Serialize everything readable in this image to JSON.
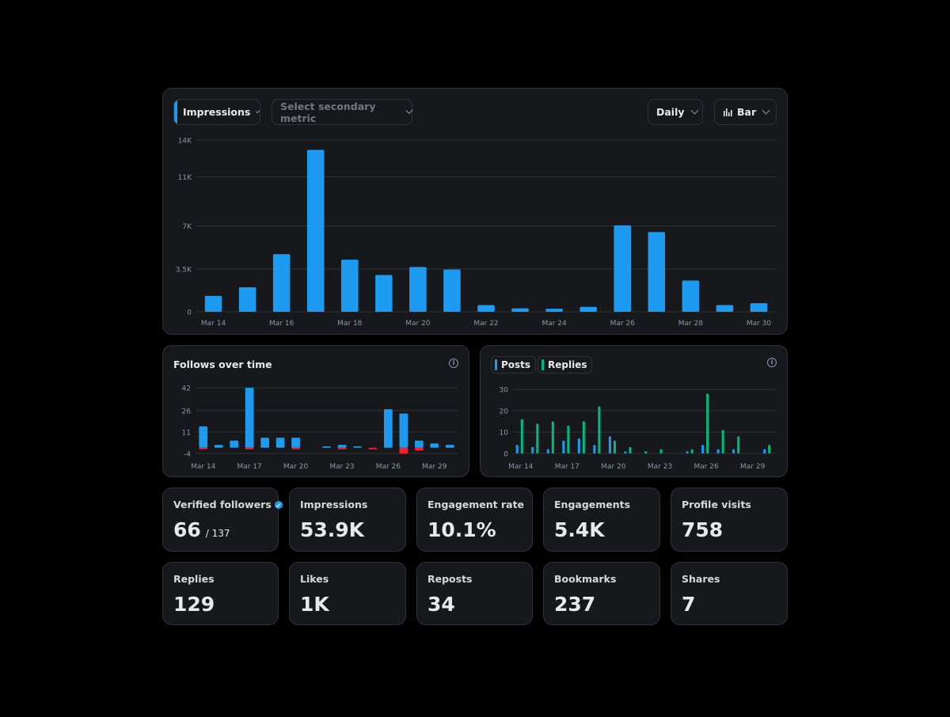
{
  "toolbar": {
    "primary_metric": "Impressions",
    "secondary_metric_placeholder": "Select secondary metric",
    "interval": "Daily",
    "chart_type": "Bar",
    "accent_color": "#1d9bf0"
  },
  "follows_card": {
    "title": "Follows over time"
  },
  "posts_card": {
    "legend_posts": "Posts",
    "legend_replies": "Replies",
    "posts_color": "#1d9bf0",
    "replies_color": "#00ba7c"
  },
  "stats_row1": [
    {
      "label": "Verified followers",
      "value": "66",
      "sub": "/ 137",
      "verified": true
    },
    {
      "label": "Impressions",
      "value": "53.9K"
    },
    {
      "label": "Engagement rate",
      "value": "10.1%"
    },
    {
      "label": "Engagements",
      "value": "5.4K"
    },
    {
      "label": "Profile visits",
      "value": "758"
    }
  ],
  "stats_row2": [
    {
      "label": "Replies",
      "value": "129"
    },
    {
      "label": "Likes",
      "value": "1K"
    },
    {
      "label": "Reposts",
      "value": "34"
    },
    {
      "label": "Bookmarks",
      "value": "237"
    },
    {
      "label": "Shares",
      "value": "7"
    }
  ],
  "chart_data": [
    {
      "id": "impressions",
      "type": "bar",
      "title": "Impressions",
      "categories": [
        "Mar 14",
        "Mar 15",
        "Mar 16",
        "Mar 17",
        "Mar 18",
        "Mar 19",
        "Mar 20",
        "Mar 21",
        "Mar 22",
        "Mar 23",
        "Mar 24",
        "Mar 25",
        "Mar 26",
        "Mar 27",
        "Mar 28",
        "Mar 29",
        "Mar 30"
      ],
      "tick_labels": [
        "Mar 14",
        "Mar 16",
        "Mar 18",
        "Mar 20",
        "Mar 22",
        "Mar 24",
        "Mar 26",
        "Mar 28",
        "Mar 30"
      ],
      "values": [
        1300,
        2000,
        4700,
        13200,
        4250,
        3000,
        3650,
        3450,
        550,
        280,
        250,
        400,
        7050,
        6500,
        2550,
        550,
        700
      ],
      "yticks": [
        0,
        3500,
        7000,
        11000,
        14000
      ],
      "ytick_labels": [
        "0",
        "3.5K",
        "7K",
        "11K",
        "14K"
      ],
      "ylim": [
        0,
        14000
      ],
      "color": "#1d9bf0"
    },
    {
      "id": "follows",
      "type": "bar",
      "title": "Follows over time",
      "categories": [
        "Mar 14",
        "Mar 15",
        "Mar 16",
        "Mar 17",
        "Mar 18",
        "Mar 19",
        "Mar 20",
        "Mar 21",
        "Mar 22",
        "Mar 23",
        "Mar 24",
        "Mar 25",
        "Mar 26",
        "Mar 27",
        "Mar 28",
        "Mar 29",
        "Mar 30"
      ],
      "tick_labels": [
        "Mar 14",
        "Mar 17",
        "Mar 20",
        "Mar 23",
        "Mar 26",
        "Mar 29"
      ],
      "series": [
        {
          "name": "Follows",
          "color": "#1d9bf0",
          "values": [
            15,
            2,
            5,
            42,
            7,
            7,
            7,
            0,
            1,
            2,
            1,
            0,
            27,
            24,
            5,
            3,
            2
          ]
        },
        {
          "name": "Unfollows",
          "color": "#f4212e",
          "values": [
            -1,
            0,
            0,
            -1,
            0,
            0,
            -1,
            0,
            0,
            -1,
            0,
            -1,
            0,
            -4,
            -2,
            0,
            0
          ]
        }
      ],
      "yticks": [
        -4,
        11,
        26,
        42
      ],
      "ylim": [
        -4,
        42
      ]
    },
    {
      "id": "posts_replies",
      "type": "bar",
      "title": "Posts and Replies",
      "categories": [
        "Mar 14",
        "Mar 15",
        "Mar 16",
        "Mar 17",
        "Mar 18",
        "Mar 19",
        "Mar 20",
        "Mar 21",
        "Mar 22",
        "Mar 23",
        "Mar 24",
        "Mar 25",
        "Mar 26",
        "Mar 27",
        "Mar 28",
        "Mar 29",
        "Mar 30"
      ],
      "tick_labels": [
        "Mar 14",
        "Mar 17",
        "Mar 20",
        "Mar 23",
        "Mar 26",
        "Mar 29"
      ],
      "series": [
        {
          "name": "Posts",
          "color": "#1d9bf0",
          "values": [
            4,
            3,
            2,
            6,
            7,
            4,
            8,
            1,
            0,
            0,
            0,
            1,
            4,
            2,
            2,
            0,
            2
          ]
        },
        {
          "name": "Replies",
          "color": "#00ba7c",
          "values": [
            16,
            14,
            15,
            13,
            15,
            22,
            6,
            3,
            1,
            2,
            0,
            2,
            28,
            11,
            8,
            0,
            4
          ]
        }
      ],
      "yticks": [
        0,
        10,
        20,
        30
      ],
      "ylim": [
        0,
        30
      ]
    }
  ]
}
